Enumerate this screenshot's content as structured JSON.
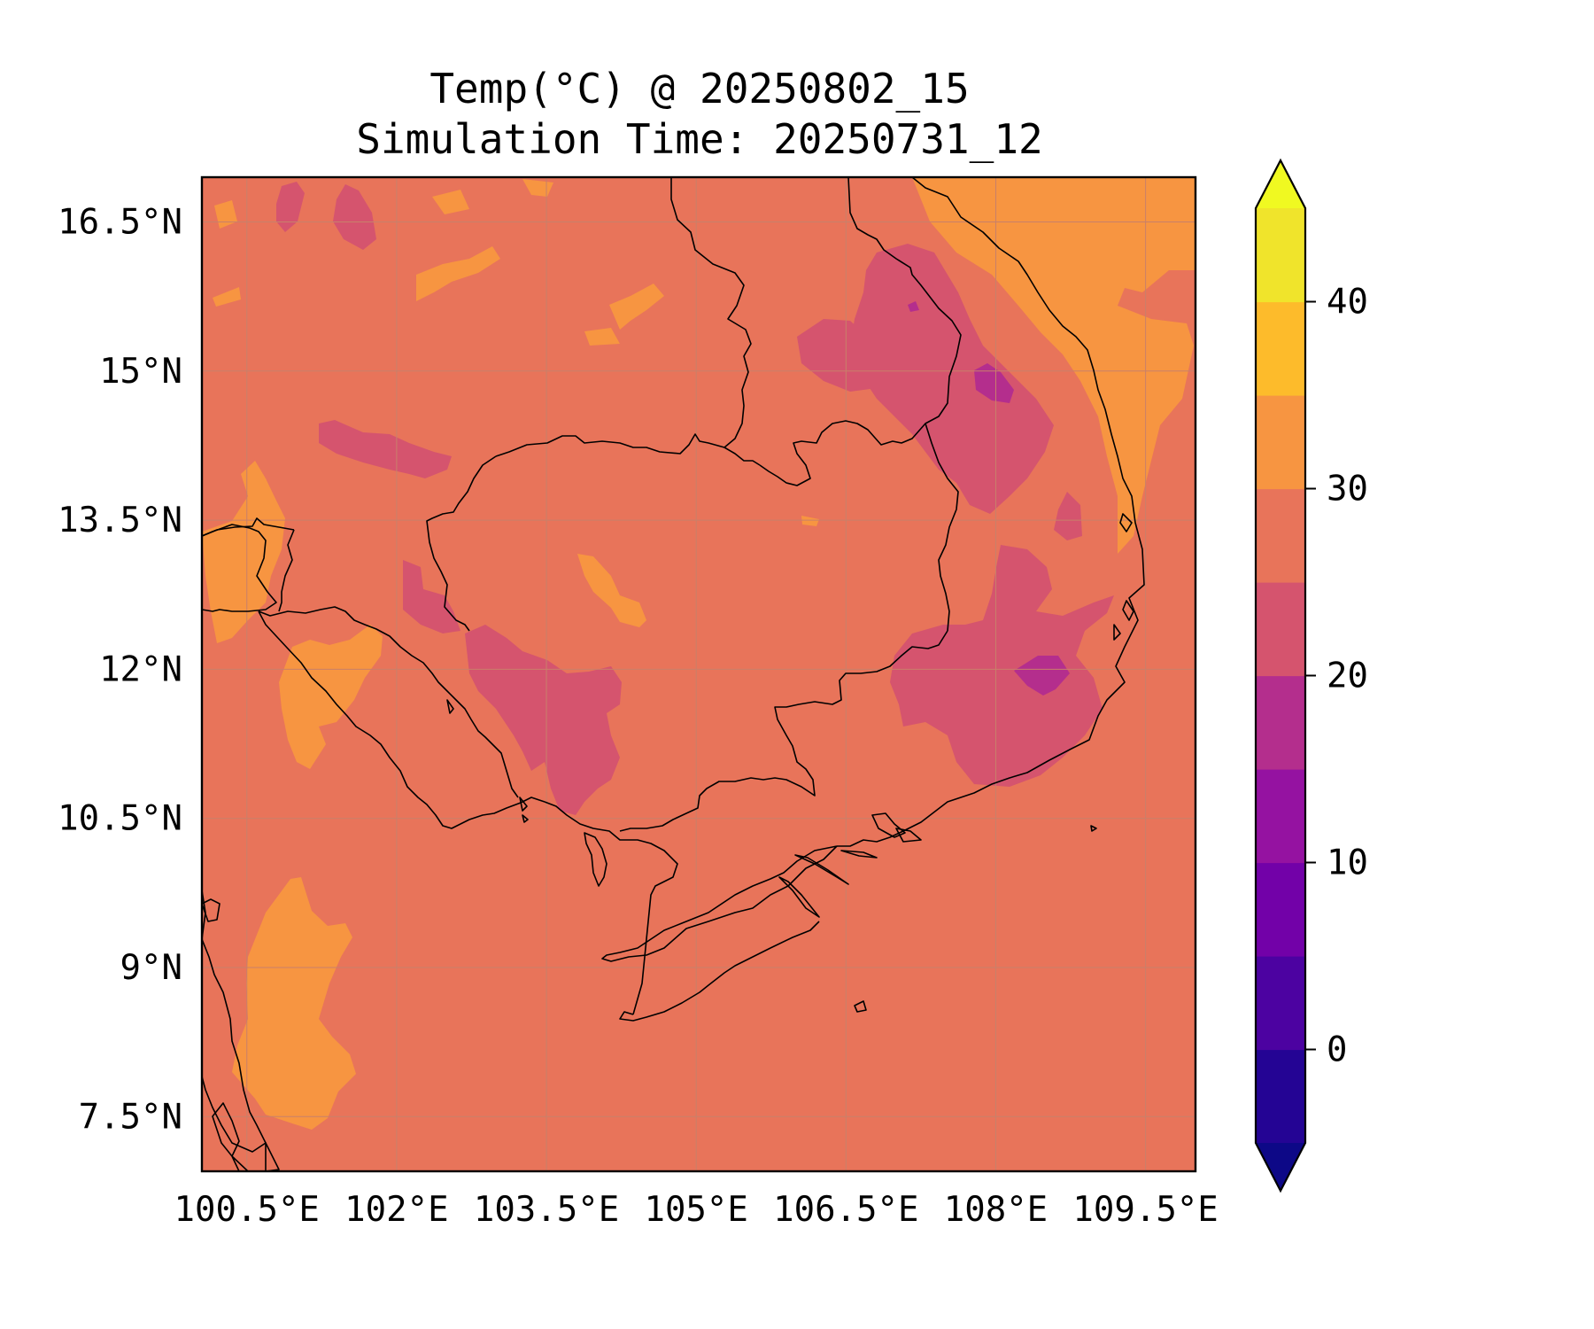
{
  "title": {
    "line1": "Temp(°C) @ 20250802_15",
    "line2": "Simulation Time: 20250731_12"
  },
  "map": {
    "lon_range": [
      100.05,
      110.0
    ],
    "lat_range": [
      6.95,
      16.95
    ],
    "lon_ticks": [
      {
        "value": 100.5,
        "label": "100.5°E"
      },
      {
        "value": 102.0,
        "label": "102°E"
      },
      {
        "value": 103.5,
        "label": "103.5°E"
      },
      {
        "value": 105.0,
        "label": "105°E"
      },
      {
        "value": 106.5,
        "label": "106.5°E"
      },
      {
        "value": 108.0,
        "label": "108°E"
      },
      {
        "value": 109.5,
        "label": "109.5°E"
      }
    ],
    "lat_ticks": [
      {
        "value": 16.5,
        "label": "16.5°N"
      },
      {
        "value": 15.0,
        "label": "15°N"
      },
      {
        "value": 13.5,
        "label": "13.5°N"
      },
      {
        "value": 12.0,
        "label": "12°N"
      },
      {
        "value": 10.5,
        "label": "10.5°N"
      },
      {
        "value": 9.0,
        "label": "9°N"
      },
      {
        "value": 7.5,
        "label": "7.5°N"
      }
    ],
    "gridlines": true,
    "background_band_color": "#e8745a"
  },
  "colorbar": {
    "min": -5,
    "max": 45,
    "extend": "both",
    "levels": [
      {
        "from": -5,
        "to": 0,
        "color": "#240494"
      },
      {
        "from": 0,
        "to": 5,
        "color": "#4c02a1"
      },
      {
        "from": 5,
        "to": 10,
        "color": "#7201a8"
      },
      {
        "from": 10,
        "to": 15,
        "color": "#9512a1"
      },
      {
        "from": 15,
        "to": 20,
        "color": "#b42e8d"
      },
      {
        "from": 20,
        "to": 25,
        "color": "#d5546e"
      },
      {
        "from": 25,
        "to": 30,
        "color": "#e8745a"
      },
      {
        "from": 30,
        "to": 35,
        "color": "#f79541"
      },
      {
        "from": 35,
        "to": 40,
        "color": "#fdbb2b"
      },
      {
        "from": 40,
        "to": 45,
        "color": "#f0e42b"
      }
    ],
    "under_color": "#0d0887",
    "over_color": "#f0f921",
    "ticks": [
      {
        "value": 0,
        "label": "0"
      },
      {
        "value": 10,
        "label": "10"
      },
      {
        "value": 20,
        "label": "20"
      },
      {
        "value": 30,
        "label": "30"
      },
      {
        "value": 40,
        "label": "40"
      }
    ]
  }
}
